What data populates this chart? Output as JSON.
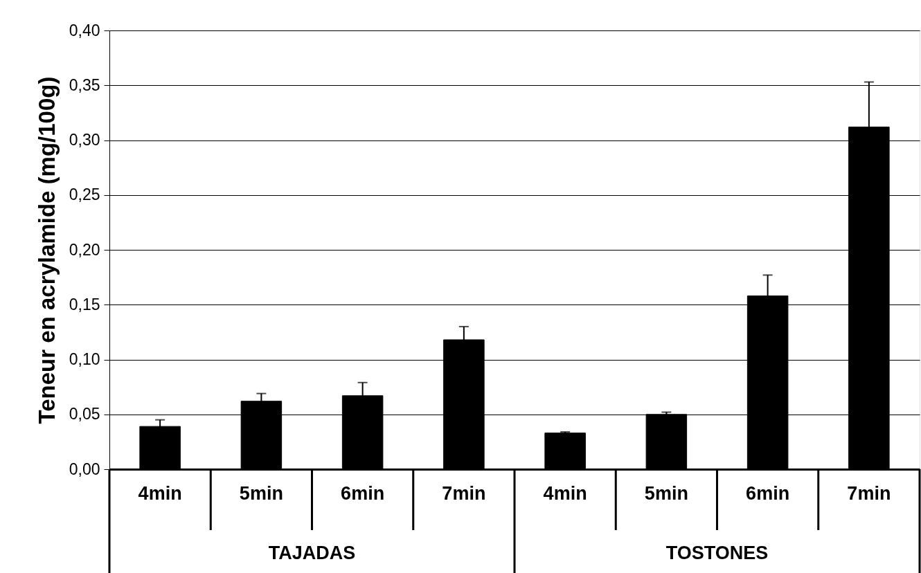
{
  "chart_data": {
    "type": "bar",
    "ylabel": "Teneur en acrylamide (mg/100g)",
    "categories": [
      "4min",
      "5min",
      "6min",
      "7min",
      "4min",
      "5min",
      "6min",
      "7min"
    ],
    "values": [
      0.039,
      0.062,
      0.067,
      0.118,
      0.033,
      0.05,
      0.158,
      0.312
    ],
    "errors": [
      0.006,
      0.007,
      0.012,
      0.012,
      0.001,
      0.002,
      0.019,
      0.041
    ],
    "color": "#000000",
    "annotations": [
      "TAJADAS",
      "TOSTONES"
    ],
    "ylim": [
      0,
      0.4
    ],
    "yticks": [
      {
        "value": 0,
        "label": "0,00"
      },
      {
        "value": 0.05,
        "label": "0,05"
      },
      {
        "value": 0.1,
        "label": "0,10"
      },
      {
        "value": 0.15,
        "label": "0,15"
      },
      {
        "value": 0.2,
        "label": "0,20"
      },
      {
        "value": 0.25,
        "label": "0,25"
      },
      {
        "value": 0.3,
        "label": "0,30"
      },
      {
        "value": 0.35,
        "label": "0,35"
      },
      {
        "value": 0.4,
        "label": "0,40"
      }
    ],
    "grid": "y"
  }
}
